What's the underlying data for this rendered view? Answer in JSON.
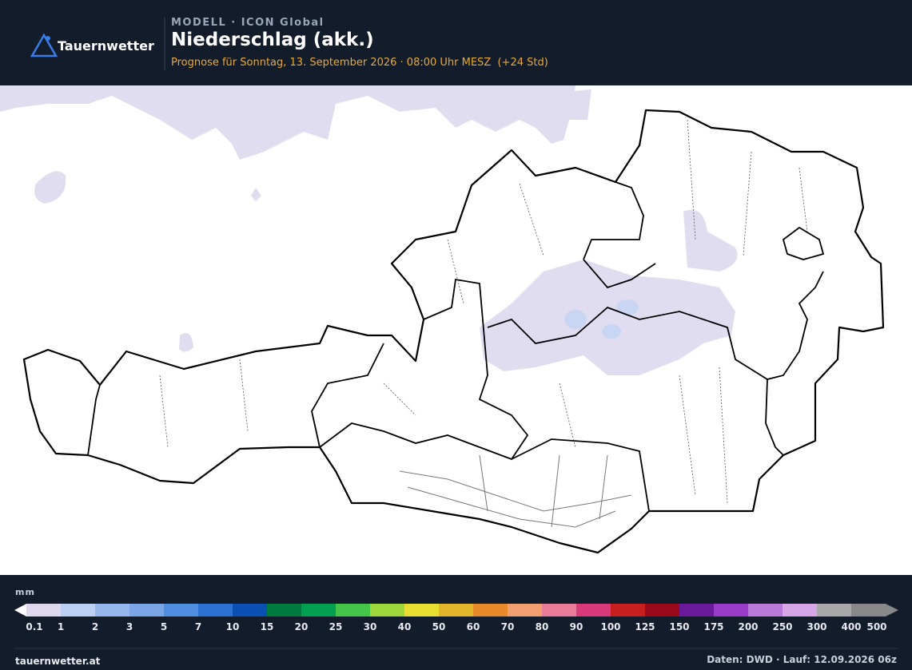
{
  "header": {
    "brand": "Tauernwetter",
    "model": "MODELL · ICON Global",
    "title": "Niederschlag (akk.)",
    "subtitle": "Prognose für Sonntag, 13. September 2026 · 08:00 Uhr MESZ  (+24 Std)"
  },
  "legend": {
    "unit": "mm",
    "labels": [
      "0.1",
      "1",
      "2",
      "3",
      "5",
      "7",
      "10",
      "15",
      "20",
      "25",
      "30",
      "40",
      "50",
      "60",
      "70",
      "80",
      "90",
      "100",
      "125",
      "150",
      "175",
      "200",
      "250",
      "300",
      "400",
      "500"
    ],
    "colors": [
      "#ddd8ee",
      "#bcd0f4",
      "#97b6ec",
      "#7aa5e6",
      "#4f8ee0",
      "#2c72d2",
      "#0a4fb2",
      "#007a3d",
      "#00a050",
      "#45c44a",
      "#9ed83a",
      "#e6de30",
      "#e3b52a",
      "#e88a2c",
      "#f0a070",
      "#e87a9a",
      "#d83a7a",
      "#c81e1e",
      "#9a0a1a",
      "#6a1a9a",
      "#9a3ac8",
      "#b87ad8",
      "#d6a6e6",
      "#a8a8a8",
      "#888888"
    ]
  },
  "footer": {
    "site": "tauernwetter.at",
    "source": "Daten: DWD · Lauf: 12.09.2026 06z"
  }
}
